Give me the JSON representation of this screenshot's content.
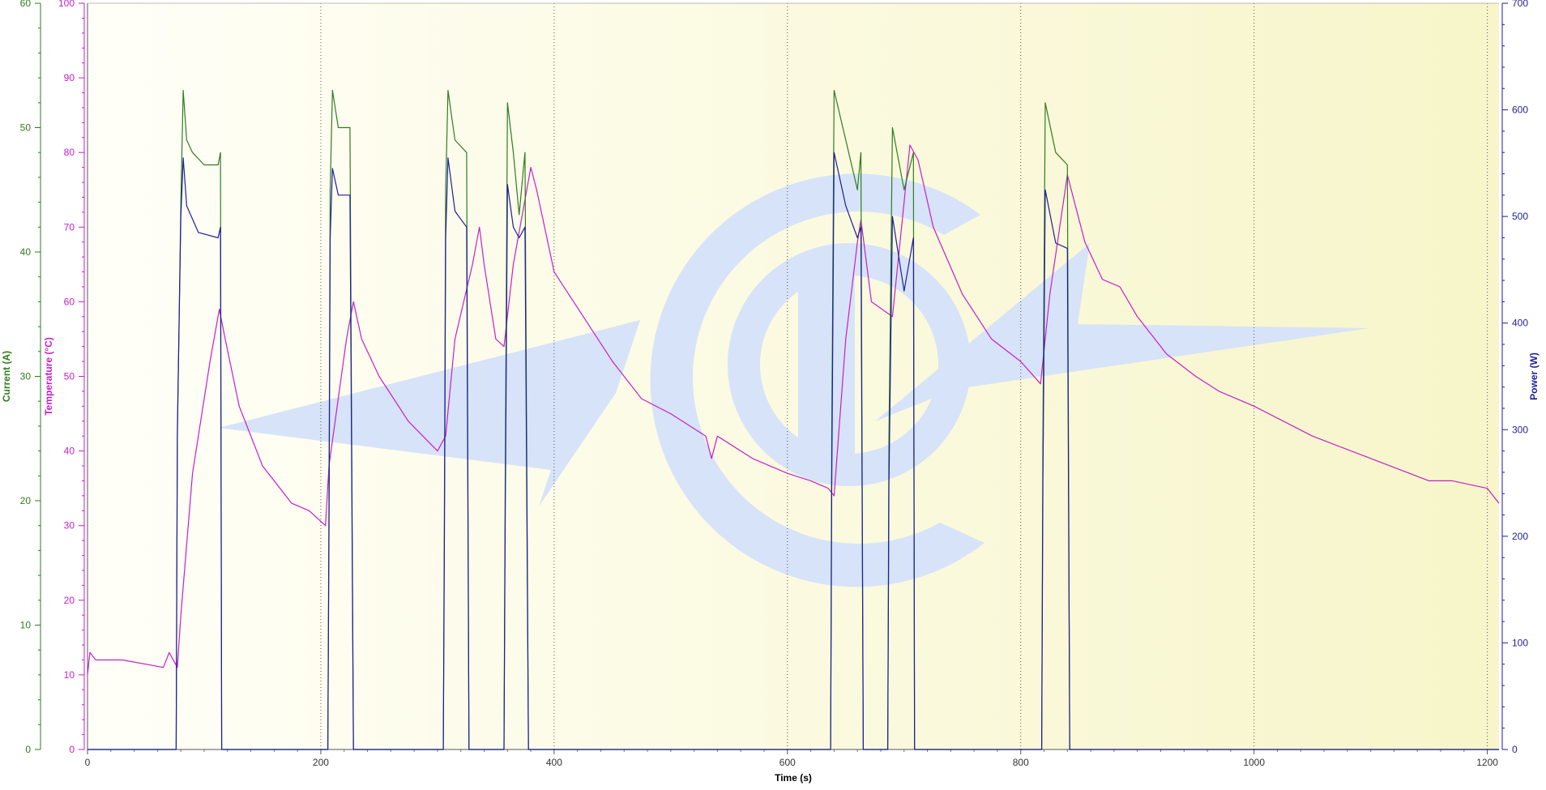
{
  "chart_data": {
    "type": "line",
    "title": "",
    "xlabel": "Time (s)",
    "xlim": [
      0,
      1210
    ],
    "x_ticks": [
      0,
      200,
      400,
      600,
      800,
      1000,
      1200
    ],
    "grid": "vertical dotted lines at x ticks",
    "legend": "none",
    "axes": [
      {
        "id": "current",
        "label": "Current (A)",
        "color": "#2e7d1e",
        "side": "left-outer",
        "ylim": [
          0,
          60
        ],
        "ticks": [
          0,
          10,
          20,
          30,
          40,
          50,
          60
        ]
      },
      {
        "id": "temperature",
        "label": "Temperature (°C)",
        "color": "#c81ec8",
        "side": "left-inner",
        "ylim": [
          0,
          100
        ],
        "ticks": [
          0,
          10,
          20,
          30,
          40,
          50,
          60,
          70,
          80,
          90,
          100
        ]
      },
      {
        "id": "power",
        "label": "Power (W)",
        "color": "#1e1e9a",
        "side": "right",
        "ylim": [
          0,
          700
        ],
        "ticks": [
          0,
          100,
          200,
          300,
          400,
          500,
          600,
          700
        ]
      }
    ],
    "series": [
      {
        "axis": "temperature",
        "color": "#c81ec8",
        "points": [
          [
            0,
            10
          ],
          [
            2,
            13
          ],
          [
            7,
            12
          ],
          [
            30,
            12
          ],
          [
            65,
            11
          ],
          [
            70,
            13
          ],
          [
            77,
            11
          ],
          [
            80,
            18
          ],
          [
            90,
            37
          ],
          [
            105,
            52
          ],
          [
            113,
            59
          ],
          [
            118,
            55
          ],
          [
            130,
            46
          ],
          [
            150,
            38
          ],
          [
            175,
            33
          ],
          [
            190,
            32
          ],
          [
            204,
            30
          ],
          [
            207,
            38
          ],
          [
            222,
            55
          ],
          [
            228,
            60
          ],
          [
            235,
            55
          ],
          [
            250,
            50
          ],
          [
            275,
            44
          ],
          [
            300,
            40
          ],
          [
            307,
            42
          ],
          [
            315,
            55
          ],
          [
            330,
            65
          ],
          [
            336,
            70
          ],
          [
            340,
            65
          ],
          [
            350,
            55
          ],
          [
            357,
            54
          ],
          [
            365,
            65
          ],
          [
            380,
            78
          ],
          [
            385,
            75
          ],
          [
            400,
            64
          ],
          [
            425,
            58
          ],
          [
            450,
            52
          ],
          [
            475,
            47
          ],
          [
            500,
            45
          ],
          [
            530,
            42
          ],
          [
            535,
            39
          ],
          [
            540,
            42
          ],
          [
            570,
            39
          ],
          [
            600,
            37
          ],
          [
            620,
            36
          ],
          [
            635,
            35
          ],
          [
            640,
            34
          ],
          [
            650,
            55
          ],
          [
            660,
            68
          ],
          [
            663,
            71
          ],
          [
            672,
            60
          ],
          [
            690,
            58
          ],
          [
            705,
            81
          ],
          [
            712,
            79
          ],
          [
            725,
            70
          ],
          [
            750,
            61
          ],
          [
            775,
            55
          ],
          [
            800,
            52
          ],
          [
            817,
            49
          ],
          [
            825,
            61
          ],
          [
            840,
            77
          ],
          [
            855,
            68
          ],
          [
            870,
            63
          ],
          [
            885,
            62
          ],
          [
            900,
            58
          ],
          [
            925,
            53
          ],
          [
            950,
            50
          ],
          [
            970,
            48
          ],
          [
            1000,
            46
          ],
          [
            1050,
            42
          ],
          [
            1100,
            39
          ],
          [
            1150,
            36
          ],
          [
            1170,
            36
          ],
          [
            1200,
            35
          ],
          [
            1210,
            33
          ]
        ]
      },
      {
        "axis": "current",
        "color": "#2e7d1e",
        "points": [
          [
            0,
            0
          ],
          [
            76,
            0
          ],
          [
            77,
            25
          ],
          [
            80,
            44
          ],
          [
            82,
            53
          ],
          [
            85,
            49
          ],
          [
            90,
            48
          ],
          [
            100,
            47
          ],
          [
            112,
            47
          ],
          [
            114,
            48
          ],
          [
            115,
            0
          ],
          [
            206,
            0
          ],
          [
            207,
            20
          ],
          [
            208,
            45
          ],
          [
            210,
            53
          ],
          [
            215,
            50
          ],
          [
            225,
            50
          ],
          [
            228,
            0
          ],
          [
            305,
            0
          ],
          [
            306,
            20
          ],
          [
            307,
            45
          ],
          [
            309,
            53
          ],
          [
            315,
            49
          ],
          [
            325,
            48
          ],
          [
            327,
            0
          ],
          [
            357,
            0
          ],
          [
            358,
            20
          ],
          [
            360,
            52
          ],
          [
            365,
            48
          ],
          [
            370,
            43
          ],
          [
            375,
            48
          ],
          [
            378,
            0
          ],
          [
            637,
            0
          ],
          [
            638,
            25
          ],
          [
            640,
            53
          ],
          [
            650,
            49
          ],
          [
            660,
            45
          ],
          [
            663,
            48
          ],
          [
            665,
            0
          ],
          [
            686,
            0
          ],
          [
            687,
            25
          ],
          [
            690,
            50
          ],
          [
            700,
            45
          ],
          [
            708,
            48
          ],
          [
            709,
            0
          ],
          [
            818,
            0
          ],
          [
            819,
            25
          ],
          [
            821,
            52
          ],
          [
            830,
            48
          ],
          [
            840,
            47
          ],
          [
            842,
            0
          ],
          [
            1210,
            0
          ]
        ]
      },
      {
        "axis": "power",
        "color": "#1e1e9a",
        "points": [
          [
            0,
            0
          ],
          [
            76,
            0
          ],
          [
            77,
            300
          ],
          [
            80,
            500
          ],
          [
            82,
            555
          ],
          [
            85,
            510
          ],
          [
            95,
            485
          ],
          [
            112,
            480
          ],
          [
            114,
            490
          ],
          [
            115,
            0
          ],
          [
            206,
            0
          ],
          [
            207,
            200
          ],
          [
            208,
            480
          ],
          [
            210,
            545
          ],
          [
            215,
            520
          ],
          [
            225,
            520
          ],
          [
            228,
            0
          ],
          [
            305,
            0
          ],
          [
            306,
            200
          ],
          [
            307,
            480
          ],
          [
            309,
            555
          ],
          [
            315,
            505
          ],
          [
            325,
            490
          ],
          [
            327,
            0
          ],
          [
            357,
            0
          ],
          [
            358,
            200
          ],
          [
            360,
            530
          ],
          [
            365,
            490
          ],
          [
            370,
            480
          ],
          [
            375,
            490
          ],
          [
            378,
            0
          ],
          [
            637,
            0
          ],
          [
            638,
            250
          ],
          [
            640,
            560
          ],
          [
            650,
            510
          ],
          [
            660,
            480
          ],
          [
            663,
            490
          ],
          [
            665,
            0
          ],
          [
            686,
            0
          ],
          [
            687,
            250
          ],
          [
            690,
            500
          ],
          [
            700,
            430
          ],
          [
            708,
            480
          ],
          [
            709,
            0
          ],
          [
            818,
            0
          ],
          [
            819,
            250
          ],
          [
            821,
            525
          ],
          [
            830,
            475
          ],
          [
            840,
            470
          ],
          [
            842,
            0
          ],
          [
            1210,
            0
          ]
        ]
      }
    ]
  }
}
